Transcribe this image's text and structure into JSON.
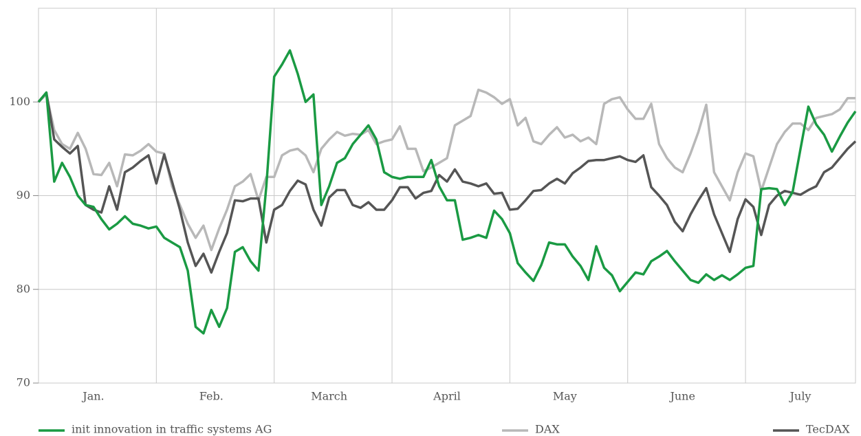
{
  "chart_data": {
    "type": "line",
    "categories": [
      null,
      null,
      null,
      null,
      null,
      null,
      null,
      "Jan.",
      null,
      null,
      null,
      null,
      null,
      null,
      null,
      null,
      null,
      null,
      null,
      null,
      null,
      null,
      "Feb.",
      null,
      null,
      null,
      null,
      null,
      null,
      null,
      null,
      null,
      null,
      null,
      null,
      null,
      null,
      "March",
      null,
      null,
      null,
      null,
      null,
      null,
      null,
      null,
      null,
      null,
      null,
      null,
      null,
      null,
      "April",
      null,
      null,
      null,
      null,
      null,
      null,
      null,
      null,
      null,
      null,
      null,
      null,
      null,
      null,
      "May",
      null,
      null,
      null,
      null,
      null,
      null,
      null,
      null,
      null,
      null,
      null,
      null,
      null,
      null,
      "June",
      null,
      null,
      null,
      null,
      null,
      null,
      null,
      null,
      null,
      null,
      null,
      null,
      null,
      null,
      "July",
      null,
      null,
      null,
      null,
      null,
      null,
      null
    ],
    "series": [
      {
        "name": "init innovation in traffic systems AG",
        "color": "#1a9a43",
        "values": [
          100,
          101,
          91.5,
          93.5,
          92,
          90,
          89,
          88.8,
          87.5,
          86.4,
          87,
          87.8,
          87,
          86.8,
          86.5,
          86.7,
          85.5,
          85,
          84.5,
          82,
          76,
          75.3,
          77.8,
          76,
          78,
          84,
          84.5,
          83,
          82,
          91,
          102.7,
          104,
          105.5,
          103,
          100,
          100.8,
          89,
          91,
          93.5,
          94,
          95.5,
          96.5,
          97.5,
          96,
          92.5,
          92,
          91.8,
          92,
          92,
          92,
          93.8,
          91,
          89.5,
          89.5,
          85.3,
          85.5,
          85.8,
          85.5,
          88.4,
          87.5,
          86,
          82.8,
          81.8,
          80.9,
          82.6,
          85,
          84.8,
          84.8,
          83.5,
          82.5,
          81,
          84.6,
          82.3,
          81.5,
          79.8,
          80.8,
          81.8,
          81.6,
          83,
          83.5,
          84.1,
          83,
          82,
          81,
          80.7,
          81.6,
          81,
          81.5,
          81,
          81.6,
          82.3,
          82.5,
          90.7,
          90.8,
          90.7,
          89,
          90.4,
          95,
          99.5,
          97.6,
          96.5,
          94.7,
          96.3,
          97.8,
          99
        ]
      },
      {
        "name": "DAX",
        "color": "#b8b8b8",
        "values": [
          100,
          100.8,
          97,
          95.5,
          95,
          96.7,
          95,
          92.3,
          92.2,
          93.5,
          91,
          94.4,
          94.3,
          94.8,
          95.5,
          94.7,
          94.5,
          91,
          89,
          87,
          85.5,
          86.8,
          84.2,
          86.5,
          88.5,
          91,
          91.5,
          92.3,
          89.5,
          92,
          92,
          94.3,
          94.8,
          95,
          94.3,
          92.5,
          95,
          96,
          96.8,
          96.4,
          96.6,
          96.5,
          97,
          95.5,
          95.8,
          96,
          97.4,
          95,
          95,
          92.6,
          93,
          93.5,
          94,
          97.5,
          98,
          98.5,
          101.3,
          101,
          100.5,
          99.8,
          100.3,
          97.5,
          98.3,
          95.8,
          95.5,
          96.5,
          97.3,
          96.2,
          96.5,
          95.8,
          96.2,
          95.5,
          99.8,
          100.3,
          100.5,
          99.2,
          98.2,
          98.2,
          99.8,
          95.5,
          94,
          93,
          92.5,
          94.5,
          96.8,
          99.7,
          92.5,
          91,
          89.5,
          92.5,
          94.5,
          94.2,
          90.5,
          93,
          95.5,
          96.8,
          97.7,
          97.7,
          97,
          98.3,
          98.5,
          98.7,
          99.2,
          100.4,
          100.4
        ]
      },
      {
        "name": "TecDAX",
        "color": "#555555",
        "values": [
          100,
          101,
          96,
          95.2,
          94.5,
          95.3,
          89,
          88.5,
          88.2,
          91,
          88.5,
          92.5,
          93,
          93.7,
          94.3,
          91.3,
          94.4,
          91.5,
          88.5,
          85,
          82.5,
          83.8,
          81.8,
          84,
          86,
          89.5,
          89.4,
          89.7,
          89.7,
          85,
          88.5,
          89,
          90.5,
          91.6,
          91.2,
          88.5,
          86.8,
          89.8,
          90.6,
          90.6,
          89,
          88.7,
          89.3,
          88.5,
          88.5,
          89.5,
          90.9,
          90.9,
          89.7,
          90.3,
          90.5,
          92.2,
          91.5,
          92.8,
          91.5,
          91.3,
          91,
          91.3,
          90.2,
          90.3,
          88.5,
          88.6,
          89.5,
          90.5,
          90.6,
          91.3,
          91.8,
          91.3,
          92.4,
          93,
          93.7,
          93.8,
          93.8,
          94,
          94.2,
          93.8,
          93.6,
          94.3,
          90.9,
          90,
          89,
          87.2,
          86.2,
          88,
          89.5,
          90.8,
          88,
          86,
          84,
          87.5,
          89.6,
          88.8,
          85.8,
          89,
          90,
          90.5,
          90.3,
          90.1,
          90.6,
          91,
          92.5,
          93,
          94,
          95,
          95.8
        ]
      }
    ],
    "ylim": [
      70,
      110
    ],
    "yticks": [
      70,
      80,
      90,
      100
    ],
    "grid": true
  }
}
